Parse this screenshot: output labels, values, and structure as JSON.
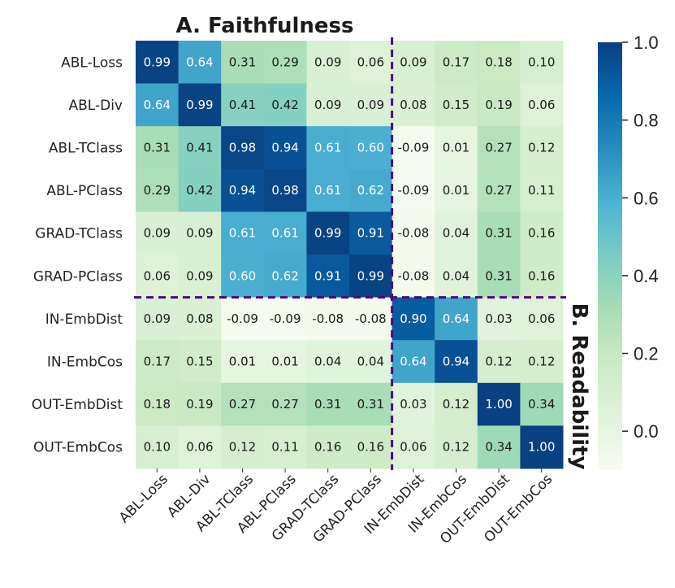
{
  "chart_data": {
    "type": "heatmap",
    "title_top": "A. Faithfulness",
    "title_right": "B. Readability",
    "row_labels": [
      "ABL-Loss",
      "ABL-Div",
      "ABL-TClass",
      "ABL-PClass",
      "GRAD-TClass",
      "GRAD-PClass",
      "IN-EmbDist",
      "IN-EmbCos",
      "OUT-EmbDist",
      "OUT-EmbCos"
    ],
    "col_labels": [
      "ABL-Loss",
      "ABL-Div",
      "ABL-TClass",
      "ABL-PClass",
      "GRAD-TClass",
      "GRAD-PClass",
      "IN-EmbDist",
      "IN-EmbCos",
      "OUT-EmbDist",
      "OUT-EmbCos"
    ],
    "values": [
      [
        0.99,
        0.64,
        0.31,
        0.29,
        0.09,
        0.06,
        0.09,
        0.17,
        0.18,
        0.1
      ],
      [
        0.64,
        0.99,
        0.41,
        0.42,
        0.09,
        0.09,
        0.08,
        0.15,
        0.19,
        0.06
      ],
      [
        0.31,
        0.41,
        0.98,
        0.94,
        0.61,
        0.6,
        -0.09,
        0.01,
        0.27,
        0.12
      ],
      [
        0.29,
        0.42,
        0.94,
        0.98,
        0.61,
        0.62,
        -0.09,
        0.01,
        0.27,
        0.11
      ],
      [
        0.09,
        0.09,
        0.61,
        0.61,
        0.99,
        0.91,
        -0.08,
        0.04,
        0.31,
        0.16
      ],
      [
        0.06,
        0.09,
        0.6,
        0.62,
        0.91,
        0.99,
        -0.08,
        0.04,
        0.31,
        0.16
      ],
      [
        0.09,
        0.08,
        -0.09,
        -0.09,
        -0.08,
        -0.08,
        0.9,
        0.64,
        0.03,
        0.06
      ],
      [
        0.17,
        0.15,
        0.01,
        0.01,
        0.04,
        0.04,
        0.64,
        0.94,
        0.12,
        0.12
      ],
      [
        0.18,
        0.19,
        0.27,
        0.27,
        0.31,
        0.31,
        0.03,
        0.12,
        1.0,
        0.34
      ],
      [
        0.1,
        0.06,
        0.12,
        0.11,
        0.16,
        0.16,
        0.06,
        0.12,
        0.34,
        1.0
      ]
    ],
    "colorbar": {
      "range": [
        -0.1,
        1.0
      ],
      "ticks": [
        1.0,
        0.8,
        0.6,
        0.4,
        0.2,
        0.0
      ],
      "tick_labels": [
        "1.0",
        "0.8",
        "0.6",
        "0.4",
        "0.2",
        "0.0"
      ]
    },
    "divider_after_index": 6,
    "colors": {
      "divider": "#4b0a82",
      "text_dark": "#1a1a1a",
      "text_light": "#ffffff"
    }
  }
}
